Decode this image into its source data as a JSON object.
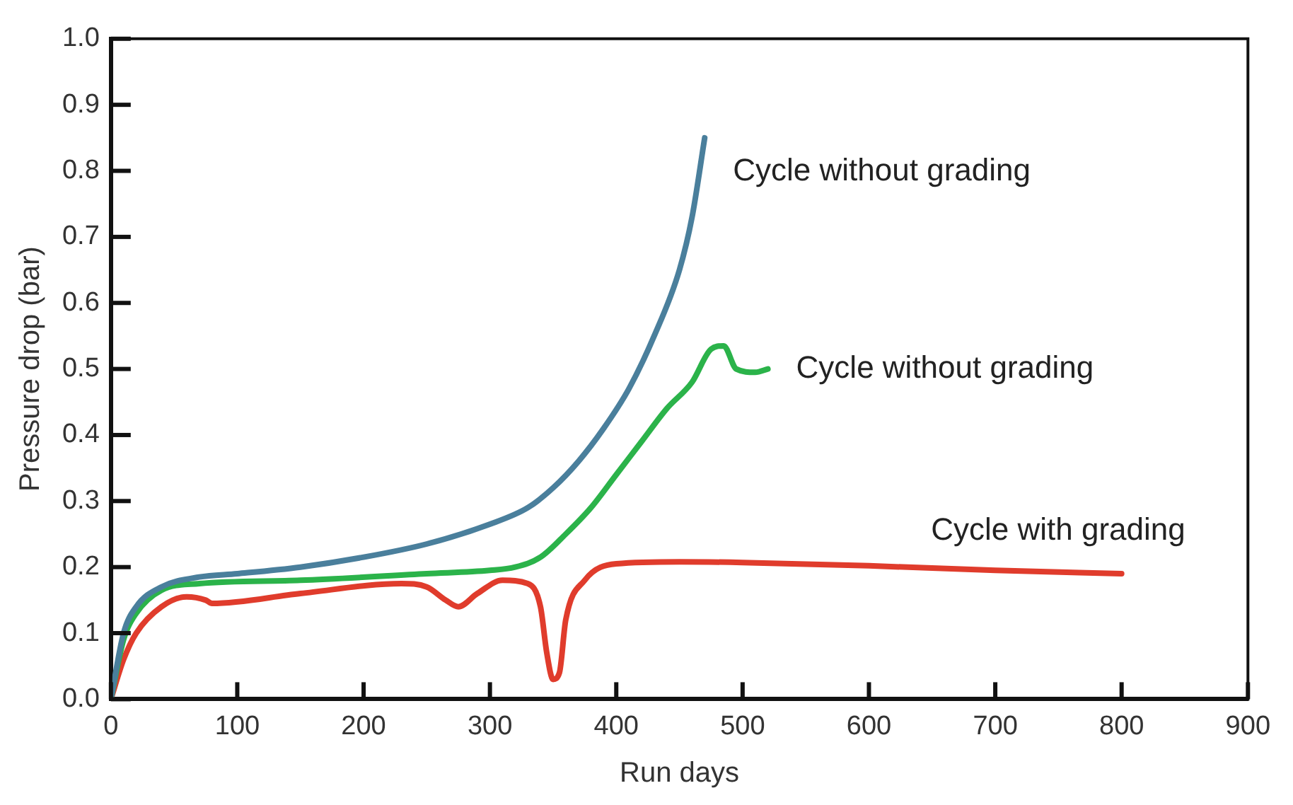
{
  "chart_data": {
    "type": "line",
    "xlabel": "Run days",
    "ylabel": "Pressure drop (bar)",
    "xlim": [
      0,
      900
    ],
    "xticks": [
      0,
      100,
      200,
      300,
      400,
      500,
      600,
      700,
      800,
      900
    ],
    "ylim": [
      0,
      1.0
    ],
    "yticks": [
      {
        "value": 0,
        "label": "0.0"
      },
      0.1,
      0.2,
      0.3,
      0.4,
      0.5,
      0.6,
      0.7,
      0.8,
      0.9,
      {
        "value": 1.0,
        "label": "1.0"
      }
    ],
    "grid": false,
    "legend": false,
    "marker": "none",
    "line_style": "solid",
    "series": [
      {
        "name": "Cycle without grading",
        "color": "#4a7f9c",
        "x": [
          0,
          10,
          20,
          40,
          70,
          100,
          150,
          200,
          250,
          300,
          330,
          350,
          370,
          390,
          410,
          430,
          450,
          460,
          470
        ],
        "values": [
          0,
          0.1,
          0.14,
          0.17,
          0.185,
          0.19,
          0.2,
          0.215,
          0.235,
          0.265,
          0.29,
          0.32,
          0.36,
          0.41,
          0.47,
          0.55,
          0.65,
          0.73,
          0.85
        ]
      },
      {
        "name": "Cycle without grading",
        "color": "#2bb34a",
        "x": [
          0,
          10,
          20,
          40,
          70,
          150,
          250,
          300,
          320,
          340,
          360,
          380,
          400,
          420,
          440,
          460,
          475,
          485,
          495,
          510,
          520
        ],
        "values": [
          0,
          0.09,
          0.13,
          0.165,
          0.175,
          0.18,
          0.19,
          0.195,
          0.2,
          0.215,
          0.25,
          0.29,
          0.34,
          0.39,
          0.44,
          0.48,
          0.53,
          0.535,
          0.5,
          0.495,
          0.5
        ]
      },
      {
        "name": "Cycle with grading",
        "color": "#e03c2c",
        "x": [
          0,
          10,
          20,
          40,
          60,
          75,
          80,
          150,
          230,
          250,
          265,
          275,
          290,
          310,
          330,
          340,
          345,
          350,
          355,
          360,
          375,
          400,
          450,
          500,
          600,
          700,
          800
        ],
        "values": [
          0,
          0.06,
          0.1,
          0.14,
          0.155,
          0.15,
          0.145,
          0.16,
          0.175,
          0.17,
          0.15,
          0.14,
          0.16,
          0.18,
          0.175,
          0.14,
          0.07,
          0.03,
          0.04,
          0.12,
          0.18,
          0.205,
          0.208,
          0.207,
          0.202,
          0.195,
          0.19
        ]
      }
    ]
  }
}
